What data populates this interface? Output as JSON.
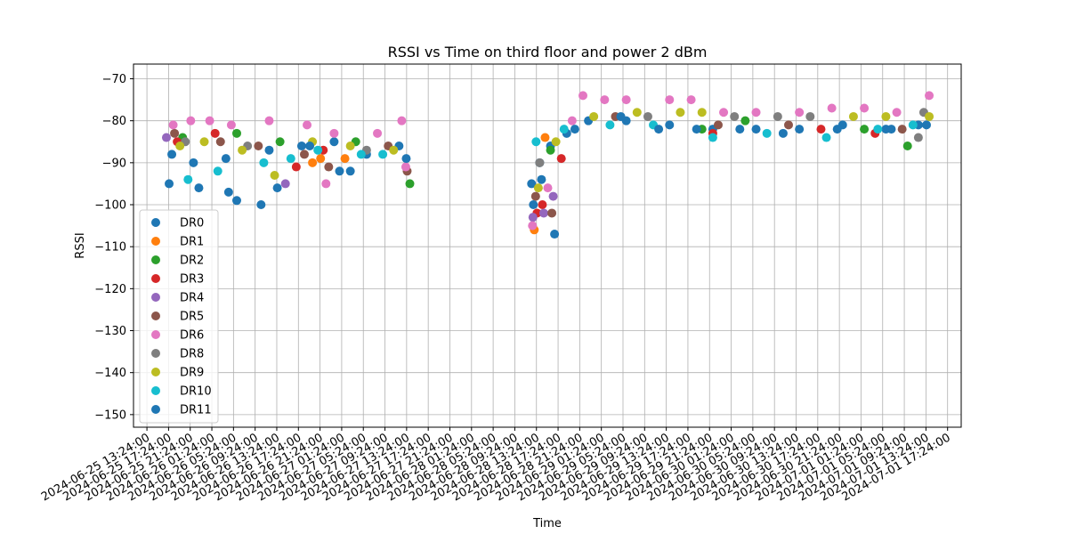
{
  "chart_data": {
    "type": "scatter",
    "title": "RSSI vs Time on third floor and power 2 dBm",
    "xlabel": "Time",
    "ylabel": "RSSI",
    "xlim": [
      "2024-06-25 10:55:00",
      "2024-07-01 19:55:00"
    ],
    "ylim": [
      -153,
      -66.5
    ],
    "yticks": [
      -150,
      -140,
      -130,
      -120,
      -110,
      -100,
      -90,
      -80,
      -70
    ],
    "xticks": [
      "2024-06-25 13:24:00",
      "2024-06-25 17:24:00",
      "2024-06-25 21:24:00",
      "2024-06-26 01:24:00",
      "2024-06-26 05:24:00",
      "2024-06-26 09:24:00",
      "2024-06-26 13:24:00",
      "2024-06-26 17:24:00",
      "2024-06-26 21:24:00",
      "2024-06-27 01:24:00",
      "2024-06-27 05:24:00",
      "2024-06-27 09:24:00",
      "2024-06-27 13:24:00",
      "2024-06-27 17:24:00",
      "2024-06-27 21:24:00",
      "2024-06-28 01:24:00",
      "2024-06-28 05:24:00",
      "2024-06-28 09:24:00",
      "2024-06-28 13:24:00",
      "2024-06-28 17:24:00",
      "2024-06-28 21:24:00",
      "2024-06-29 01:24:00",
      "2024-06-29 05:24:00",
      "2024-06-29 09:24:00",
      "2024-06-29 13:24:00",
      "2024-06-29 17:24:00",
      "2024-06-29 21:24:00",
      "2024-06-30 01:24:00",
      "2024-06-30 05:24:00",
      "2024-06-30 09:24:00",
      "2024-06-30 13:24:00",
      "2024-06-30 17:24:00",
      "2024-06-30 21:24:00",
      "2024-07-01 01:24:00",
      "2024-07-01 05:24:00",
      "2024-07-01 09:24:00",
      "2024-07-01 13:24:00",
      "2024-07-01 17:24:00"
    ],
    "grid": true,
    "legend_position": "lower-left",
    "series": [
      {
        "name": "DR0",
        "color": "#1f77b4",
        "points": [
          [
            "2024-06-25 18:00",
            -88
          ],
          [
            "2024-06-25 22:00",
            -90
          ],
          [
            "2024-06-26 04:00",
            -89
          ],
          [
            "2024-06-26 12:00",
            -87
          ],
          [
            "2024-06-26 18:00",
            -86
          ],
          [
            "2024-06-27 00:00",
            -85
          ],
          [
            "2024-06-27 06:00",
            -88
          ],
          [
            "2024-06-27 12:00",
            -86
          ],
          [
            "2024-06-28 12:30",
            -95
          ],
          [
            "2024-06-28 14:00",
            -90
          ],
          [
            "2024-06-28 16:00",
            -86
          ],
          [
            "2024-06-28 19:00",
            -83
          ],
          [
            "2024-06-28 23:00",
            -80
          ],
          [
            "2024-06-29 06:00",
            -80
          ],
          [
            "2024-06-29 14:00",
            -81
          ],
          [
            "2024-06-29 22:00",
            -82
          ],
          [
            "2024-06-30 06:00",
            -82
          ],
          [
            "2024-06-30 14:00",
            -82
          ],
          [
            "2024-06-30 22:00",
            -81
          ],
          [
            "2024-07-01 06:00",
            -82
          ],
          [
            "2024-07-01 12:00",
            -81
          ]
        ]
      },
      {
        "name": "DR1",
        "color": "#ff7f0e",
        "points": [
          [
            "2024-06-28 13:00",
            -106
          ],
          [
            "2024-06-28 15:00",
            -84
          ],
          [
            "2024-06-26 20:00",
            -90
          ],
          [
            "2024-06-26 21:30",
            -89
          ],
          [
            "2024-06-27 02:00",
            -89
          ]
        ]
      },
      {
        "name": "DR2",
        "color": "#2ca02c",
        "points": [
          [
            "2024-06-25 20:00",
            -84
          ],
          [
            "2024-06-26 06:00",
            -83
          ],
          [
            "2024-06-26 14:00",
            -85
          ],
          [
            "2024-06-27 04:00",
            -85
          ],
          [
            "2024-06-27 14:00",
            -95
          ],
          [
            "2024-06-28 16:00",
            -87
          ],
          [
            "2024-06-29 20:00",
            -82
          ],
          [
            "2024-06-30 04:00",
            -80
          ],
          [
            "2024-07-01 02:00",
            -82
          ],
          [
            "2024-07-01 10:00",
            -86
          ]
        ]
      },
      {
        "name": "DR3",
        "color": "#d62728",
        "points": [
          [
            "2024-06-25 19:00",
            -85
          ],
          [
            "2024-06-26 02:00",
            -83
          ],
          [
            "2024-06-26 17:00",
            -91
          ],
          [
            "2024-06-26 22:00",
            -87
          ],
          [
            "2024-06-28 13:30",
            -102
          ],
          [
            "2024-06-28 14:30",
            -100
          ],
          [
            "2024-06-28 18:00",
            -89
          ],
          [
            "2024-06-29 22:00",
            -83
          ],
          [
            "2024-06-30 18:00",
            -82
          ],
          [
            "2024-07-01 04:00",
            -83
          ]
        ]
      },
      {
        "name": "DR4",
        "color": "#9467bd",
        "points": [
          [
            "2024-06-25 17:00",
            -84
          ],
          [
            "2024-06-26 15:00",
            -95
          ],
          [
            "2024-06-28 12:45",
            -103
          ],
          [
            "2024-06-28 14:45",
            -102
          ],
          [
            "2024-06-28 16:30",
            -98
          ]
        ]
      },
      {
        "name": "DR5",
        "color": "#8c564b",
        "points": [
          [
            "2024-06-25 18:30",
            -83
          ],
          [
            "2024-06-26 03:00",
            -85
          ],
          [
            "2024-06-26 10:00",
            -86
          ],
          [
            "2024-06-26 18:30",
            -88
          ],
          [
            "2024-06-26 23:00",
            -91
          ],
          [
            "2024-06-27 10:00",
            -86
          ],
          [
            "2024-06-27 13:30",
            -92
          ],
          [
            "2024-06-28 13:15",
            -98
          ],
          [
            "2024-06-28 16:15",
            -102
          ],
          [
            "2024-06-29 04:00",
            -79
          ],
          [
            "2024-06-29 23:00",
            -81
          ],
          [
            "2024-06-30 12:00",
            -81
          ],
          [
            "2024-07-01 09:00",
            -82
          ]
        ]
      },
      {
        "name": "DR6",
        "color": "#e377c2",
        "points": [
          [
            "2024-06-25 18:15",
            -81
          ],
          [
            "2024-06-25 21:30",
            -80
          ],
          [
            "2024-06-26 01:00",
            -80
          ],
          [
            "2024-06-26 05:00",
            -81
          ],
          [
            "2024-06-26 12:00",
            -80
          ],
          [
            "2024-06-26 19:00",
            -81
          ],
          [
            "2024-06-26 22:30",
            -95
          ],
          [
            "2024-06-27 00:00",
            -83
          ],
          [
            "2024-06-27 08:00",
            -83
          ],
          [
            "2024-06-27 12:30",
            -80
          ],
          [
            "2024-06-27 13:15",
            -91
          ],
          [
            "2024-06-28 12:40",
            -105
          ],
          [
            "2024-06-28 15:30",
            -96
          ],
          [
            "2024-06-28 20:00",
            -80
          ],
          [
            "2024-06-28 22:00",
            -74
          ],
          [
            "2024-06-29 02:00",
            -75
          ],
          [
            "2024-06-29 06:00",
            -75
          ],
          [
            "2024-06-29 14:00",
            -75
          ],
          [
            "2024-06-29 18:00",
            -75
          ],
          [
            "2024-06-30 00:00",
            -78
          ],
          [
            "2024-06-30 06:00",
            -78
          ],
          [
            "2024-06-30 14:00",
            -78
          ],
          [
            "2024-06-30 20:00",
            -77
          ],
          [
            "2024-07-01 02:00",
            -77
          ],
          [
            "2024-07-01 08:00",
            -78
          ],
          [
            "2024-07-01 14:00",
            -74
          ]
        ]
      },
      {
        "name": "DR8",
        "color": "#7f7f7f",
        "points": [
          [
            "2024-06-25 20:30",
            -85
          ],
          [
            "2024-06-26 08:00",
            -86
          ],
          [
            "2024-06-27 06:00",
            -87
          ],
          [
            "2024-06-28 14:00",
            -90
          ],
          [
            "2024-06-29 10:00",
            -79
          ],
          [
            "2024-06-30 02:00",
            -79
          ],
          [
            "2024-06-30 10:00",
            -79
          ],
          [
            "2024-06-30 16:00",
            -79
          ],
          [
            "2024-07-01 12:00",
            -84
          ],
          [
            "2024-07-01 13:00",
            -78
          ]
        ]
      },
      {
        "name": "DR9",
        "color": "#bcbd22",
        "points": [
          [
            "2024-06-25 19:30",
            -86
          ],
          [
            "2024-06-26 00:00",
            -85
          ],
          [
            "2024-06-26 07:00",
            -87
          ],
          [
            "2024-06-26 13:00",
            -93
          ],
          [
            "2024-06-26 20:00",
            -85
          ],
          [
            "2024-06-27 03:00",
            -86
          ],
          [
            "2024-06-27 11:00",
            -87
          ],
          [
            "2024-06-28 13:45",
            -96
          ],
          [
            "2024-06-28 17:00",
            -85
          ],
          [
            "2024-06-29 00:00",
            -79
          ],
          [
            "2024-06-29 08:00",
            -78
          ],
          [
            "2024-06-29 16:00",
            -78
          ],
          [
            "2024-06-29 20:00",
            -78
          ],
          [
            "2024-07-01 00:00",
            -79
          ],
          [
            "2024-07-01 06:00",
            -79
          ],
          [
            "2024-07-01 14:00",
            -79
          ]
        ]
      },
      {
        "name": "DR10",
        "color": "#17becf",
        "points": [
          [
            "2024-06-25 21:00",
            -94
          ],
          [
            "2024-06-26 02:30",
            -92
          ],
          [
            "2024-06-26 11:00",
            -90
          ],
          [
            "2024-06-26 16:00",
            -89
          ],
          [
            "2024-06-26 21:00",
            -87
          ],
          [
            "2024-06-27 05:00",
            -88
          ],
          [
            "2024-06-27 09:00",
            -88
          ],
          [
            "2024-06-28 13:20",
            -85
          ],
          [
            "2024-06-28 18:30",
            -82
          ],
          [
            "2024-06-29 03:00",
            -81
          ],
          [
            "2024-06-29 11:00",
            -81
          ],
          [
            "2024-06-29 22:00",
            -84
          ],
          [
            "2024-06-30 08:00",
            -83
          ],
          [
            "2024-06-30 19:00",
            -84
          ],
          [
            "2024-07-01 04:30",
            -82
          ],
          [
            "2024-07-01 11:00",
            -81
          ]
        ]
      },
      {
        "name": "DR11",
        "color": "#1f77b4",
        "points": [
          [
            "2024-06-25 17:30",
            -95
          ],
          [
            "2024-06-25 23:00",
            -96
          ],
          [
            "2024-06-26 04:30",
            -97
          ],
          [
            "2024-06-26 06:00",
            -99
          ],
          [
            "2024-06-26 10:30",
            -100
          ],
          [
            "2024-06-26 13:30",
            -96
          ],
          [
            "2024-06-26 19:30",
            -86
          ],
          [
            "2024-06-27 01:00",
            -92
          ],
          [
            "2024-06-27 03:00",
            -92
          ],
          [
            "2024-06-27 13:20",
            -89
          ],
          [
            "2024-06-28 12:50",
            -100
          ],
          [
            "2024-06-28 14:20",
            -94
          ],
          [
            "2024-06-28 16:45",
            -107
          ],
          [
            "2024-06-28 20:30",
            -82
          ],
          [
            "2024-06-29 05:00",
            -79
          ],
          [
            "2024-06-29 12:00",
            -82
          ],
          [
            "2024-06-29 19:00",
            -82
          ],
          [
            "2024-06-30 03:00",
            -82
          ],
          [
            "2024-06-30 11:00",
            -83
          ],
          [
            "2024-06-30 21:00",
            -82
          ],
          [
            "2024-07-01 07:00",
            -82
          ],
          [
            "2024-07-01 13:30",
            -81
          ]
        ]
      }
    ]
  }
}
